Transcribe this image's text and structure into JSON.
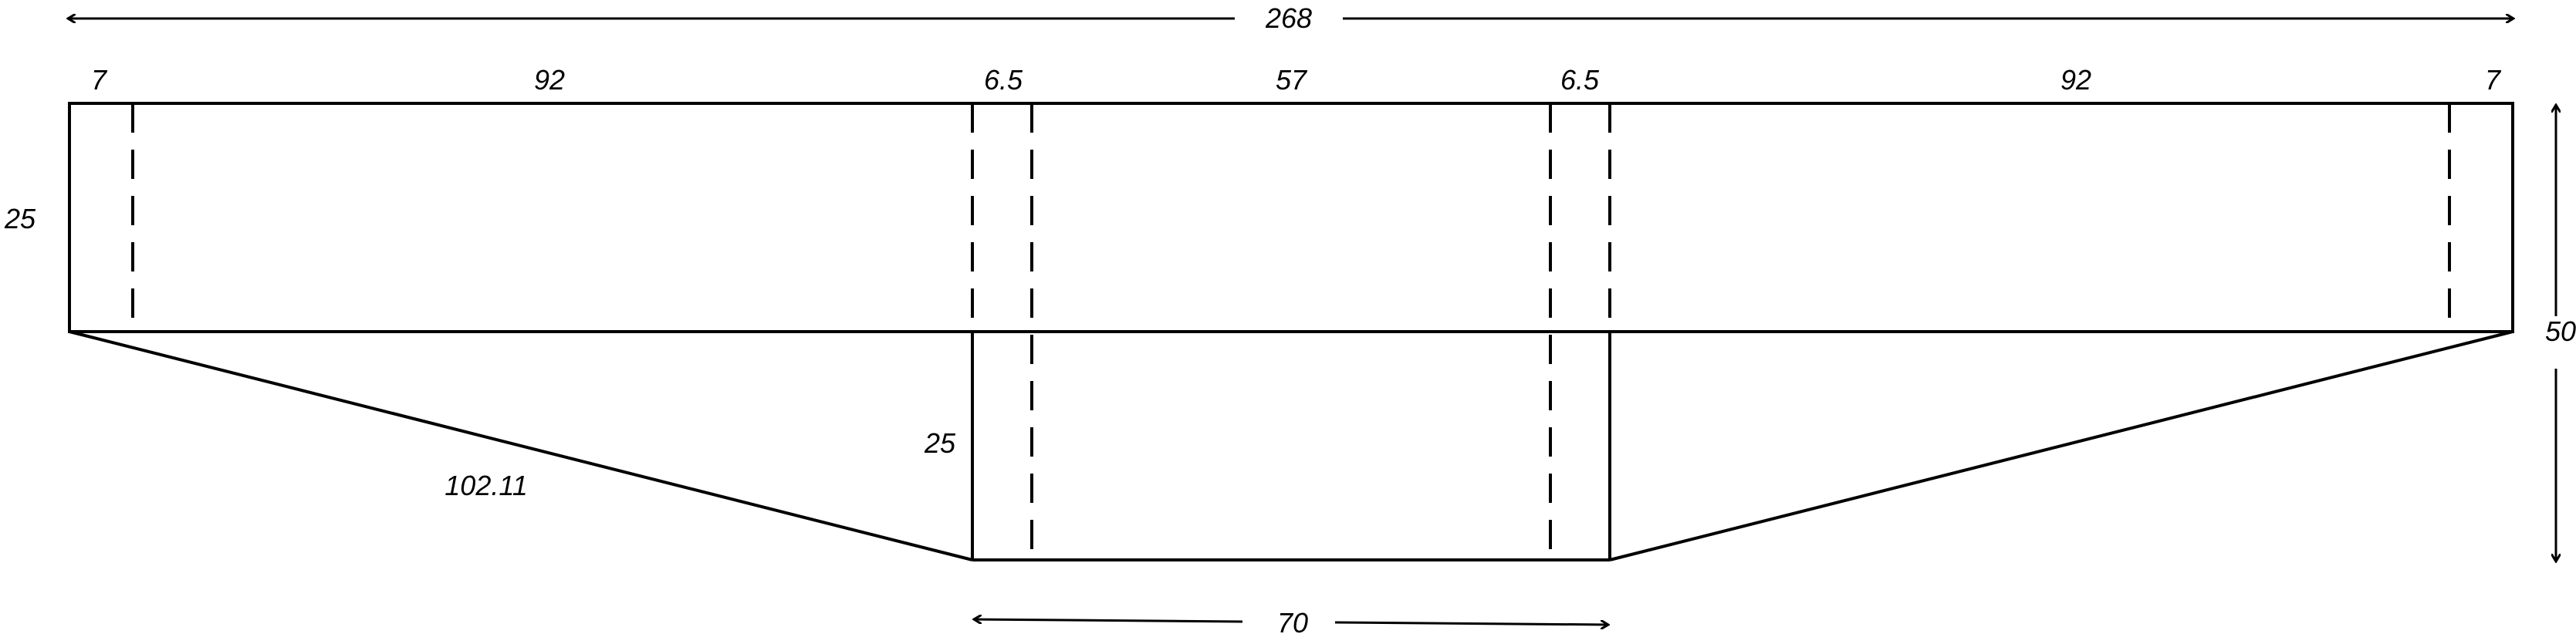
{
  "diagram": {
    "overall_width": "268",
    "overall_height": "50",
    "top_segments": [
      "7",
      "92",
      "6.5",
      "57",
      "6.5",
      "92",
      "7"
    ],
    "top_rect_height": "25",
    "lower_height": "25",
    "slant_length": "102.11",
    "bottom_width": "70"
  },
  "colors": {
    "line": "#000000",
    "background": "#ffffff"
  }
}
